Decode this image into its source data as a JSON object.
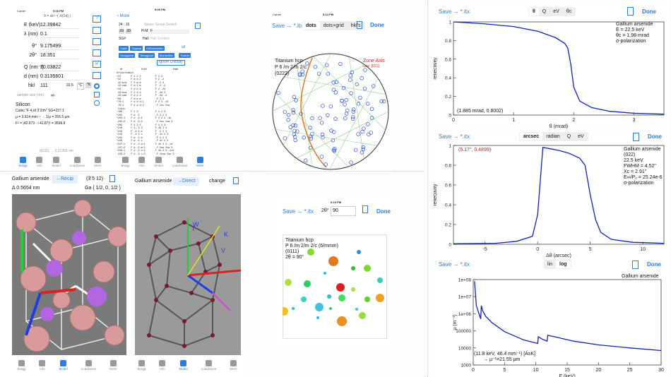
{
  "bragg": {
    "carrier": "Carrier",
    "time": "5:03 PM",
    "formula": "θ = sin⁻¹( λ/(2d) )",
    "rows": [
      {
        "label": "E (keV)",
        "value": "12.39842"
      },
      {
        "label": "λ (nm)",
        "value": "0.1"
      },
      {
        "label": "θ°",
        "value": "9.175499"
      },
      {
        "label": "2θ°",
        "value": "18.351"
      },
      {
        "label": "Q (nm⁻¹)",
        "value": "20.03822"
      },
      {
        "label": "d (nm)",
        "value": "0.3135601"
      }
    ],
    "hkl_label": "hkl",
    "hkl_value": "111",
    "temp": "22.5",
    "unit_c": "°C",
    "unit_k": "°K",
    "sample_label": "sample size  (nm)",
    "sample_value": "∞",
    "material": "Silicon",
    "cubic": "Cubic   \"F 4₁/d 3̄ 2/m\"   SG=227:1",
    "mu": "μ = 3.914 mm⁻¹ → 1/μ = 255.5 μm",
    "f2": "F² = |42.973 - i 41.87|² = 3599.8",
    "dnote": "d(111) → 0.31356 nm"
  },
  "sg": {
    "time": "5:05 PM",
    "more": "More",
    "search": "Space Group Search",
    "num": "24 : 16",
    "d2": "2D",
    "d3": "3D",
    "hm": "H-M",
    "hmval": "F",
    "sg_label": "SG#",
    "hall": "Hall",
    "hallph": "Hall Symbol",
    "chips": [
      "Cubic",
      "Trigonal",
      "Orthorhombic",
      "Hexagonal",
      "Tetragonal",
      "Monoclinic",
      "Triclinic"
    ],
    "all": "all",
    "ignore": "Ignore Chirality",
    "cols": [
      "id",
      "H-M",
      "Hall"
    ],
    "table": "Orthorhombic\n*22       F 2 2 2          F 2 2\n*42       F m m 2          F 2 -2\n 42:bca   F 2 m m          F -2 2\n 42:cab   F m 2 m          F -2 -2\n*43       F d d 2          F 2 -2d\n 43:bca   F 2 d d          F -2d 2\n 43:cab   F d 2 d          F -2d -2\n*69       F m m m          -F 2 2\n*70:1     F d d d:1        F 2 2 -1d\n 70:2     F d d d:2        -F 2uv 2vw\n Cubic\n*196      F 2 3            F 2 2 3\n*202      F m -3           -F 2 2 3\n*203:1    F d -3:1         F 2 2 3 -1d\n 203:2    F d -3:2         -F 2uv 2vw 3\n*209      F 4 3 2          F 4 2 3\n*210      F 4₁ 3 2         F 4d 2 3\n*216      F -4 3 m         F -4 2 3\n*219      F -4 3 c         F -4c 2 3\n*225      F m -3 m         -F 4 2 3\n*226      F m -3 c         -F 4c 2 3\n*227:1    F d -3 m:1       F 4d 2 3 -1d\n 227:2    F d -3 m:2       -F 4vw 2vw 3\n*228:1    F d -3 c:1       F 4d 2 3 -1cd\n 228:2    F d -3 c:2       -F 4cvw 2vw 3"
  },
  "tabs": [
    "Bragg",
    "Info",
    "Model",
    "Load/Save",
    "More"
  ],
  "model1": {
    "material": "Gallium arsenide",
    "recip": "→Recip",
    "hkl": "(3̄ 5 12)",
    "delta": "Δ 0.5654 nm",
    "ga": "Ga  { 1/2, 0, 1/2 }"
  },
  "model2": {
    "material": "Gallium arsenide",
    "direct": "→Direct",
    "change": "change",
    "axes": [
      "W",
      "K",
      "V",
      "T"
    ]
  },
  "stereo": {
    "carrier": "Carrier",
    "time": "5:14 PM",
    "save": "Save → *.itx",
    "tabs": [
      "dots",
      "dots+grid",
      "hkl's"
    ],
    "done": "Done",
    "title1": "Titanium hcp",
    "title2": "P 6 /m 2/m 2/c",
    "title3": "(0222)",
    "zone1": "Zone Axis",
    "zone2": "uvw: [021]"
  },
  "laue": {
    "time": "5:15 PM",
    "save": "Save → *.itx",
    "tt_label": "2θ°",
    "tt_value": "90",
    "done": "Done",
    "l1": "Titanium hcp",
    "l2": "P 6 /m 2/m 2/c  (6/mmm)",
    "l3": "(0111)",
    "l4": "2θ = 90°"
  },
  "chart_refl": {
    "save": "Save → *.itx",
    "tabs": [
      "θ",
      "Q",
      "eV",
      "θc"
    ],
    "done": "Done",
    "info": [
      "Gallium arsenide",
      "E = 22.5 keV",
      "θc = 1.98 mrad",
      "σ-polarization"
    ],
    "readout": "(1.885 mrad, 0.8002)"
  },
  "chart_dt": {
    "save": "Save → *.itx",
    "tabs": [
      "arcsec",
      "radian",
      "Q",
      "eV"
    ],
    "done": "Done",
    "info": [
      "Gallium arsenide",
      "(022)",
      "22.5 keV",
      "FWHM = 4.52\"",
      "Xc = 2.91\"",
      "E∞/Pₒ = 25.24e-6",
      "σ-polarization"
    ],
    "readout": "(5.17\", 0.4899)"
  },
  "chart_mu": {
    "save": "Save → *.itx",
    "tabs": [
      "lin",
      "log"
    ],
    "done": "Done",
    "info": [
      "Gallium arsenide"
    ],
    "readout1": "(11.8 keV, 46.4 mm⁻¹)   [AsK]",
    "readout2": "→ μ⁻¹=21.55 μm",
    "xlabel": "E (keV)"
  },
  "chart_data": [
    {
      "type": "line",
      "xlabel": "θ (mrad)",
      "ylabel": "reflectivity",
      "xlim": [
        0,
        3.5
      ],
      "ylim": [
        0,
        1
      ],
      "xticks": [
        "0",
        "1",
        "2",
        "3"
      ],
      "yticks": [
        "0",
        "0.2",
        "0.4",
        "0.6",
        "0.8",
        "1"
      ],
      "x": [
        0,
        0.5,
        1,
        1.4,
        1.7,
        1.85,
        1.9,
        1.95,
        2.0,
        2.1,
        2.3,
        2.6,
        3.0,
        3.5
      ],
      "y": [
        1,
        0.98,
        0.95,
        0.9,
        0.83,
        0.77,
        0.72,
        0.55,
        0.3,
        0.15,
        0.08,
        0.04,
        0.02,
        0.01
      ]
    },
    {
      "type": "line",
      "xlabel": "Δθ (arcsec)",
      "ylabel": "reflectivity",
      "xlim": [
        -8,
        12
      ],
      "ylim": [
        0,
        1
      ],
      "xticks": [
        "-5",
        "0",
        "5",
        "10"
      ],
      "yticks": [
        "0",
        "0.2",
        "0.4",
        "0.6",
        "0.8",
        "1"
      ],
      "x": [
        -8,
        -4,
        -2,
        -0.5,
        0,
        0.5,
        1,
        2,
        3,
        4,
        4.5,
        5,
        5.5,
        6,
        7,
        9,
        12
      ],
      "y": [
        0.005,
        0.01,
        0.03,
        0.08,
        0.3,
        0.98,
        0.97,
        0.95,
        0.92,
        0.87,
        0.8,
        0.5,
        0.25,
        0.12,
        0.05,
        0.02,
        0.01
      ]
    },
    {
      "type": "line",
      "xlabel": "E (keV)",
      "ylabel": "μ (m⁻¹)",
      "ylog": true,
      "xlim": [
        0,
        30
      ],
      "ylim": [
        1000,
        100000000
      ],
      "xticks": [
        "0",
        "5",
        "10",
        "15",
        "20",
        "25",
        "30"
      ],
      "yticks": [
        "1000",
        "10000",
        "100000",
        "1e+06",
        "1e+07",
        "1e+08"
      ],
      "x": [
        0.2,
        0.5,
        1,
        1.2,
        1.3,
        1.5,
        2,
        3,
        5,
        8,
        10.3,
        10.4,
        11,
        11.8,
        11.9,
        13,
        16,
        20,
        25,
        30
      ],
      "y": [
        80000000,
        3000000,
        800000,
        500000,
        3000000,
        1500000,
        700000,
        300000,
        90000,
        30000,
        18000,
        45000,
        33000,
        25000,
        55000,
        45000,
        25000,
        15000,
        10000,
        7000
      ]
    }
  ]
}
